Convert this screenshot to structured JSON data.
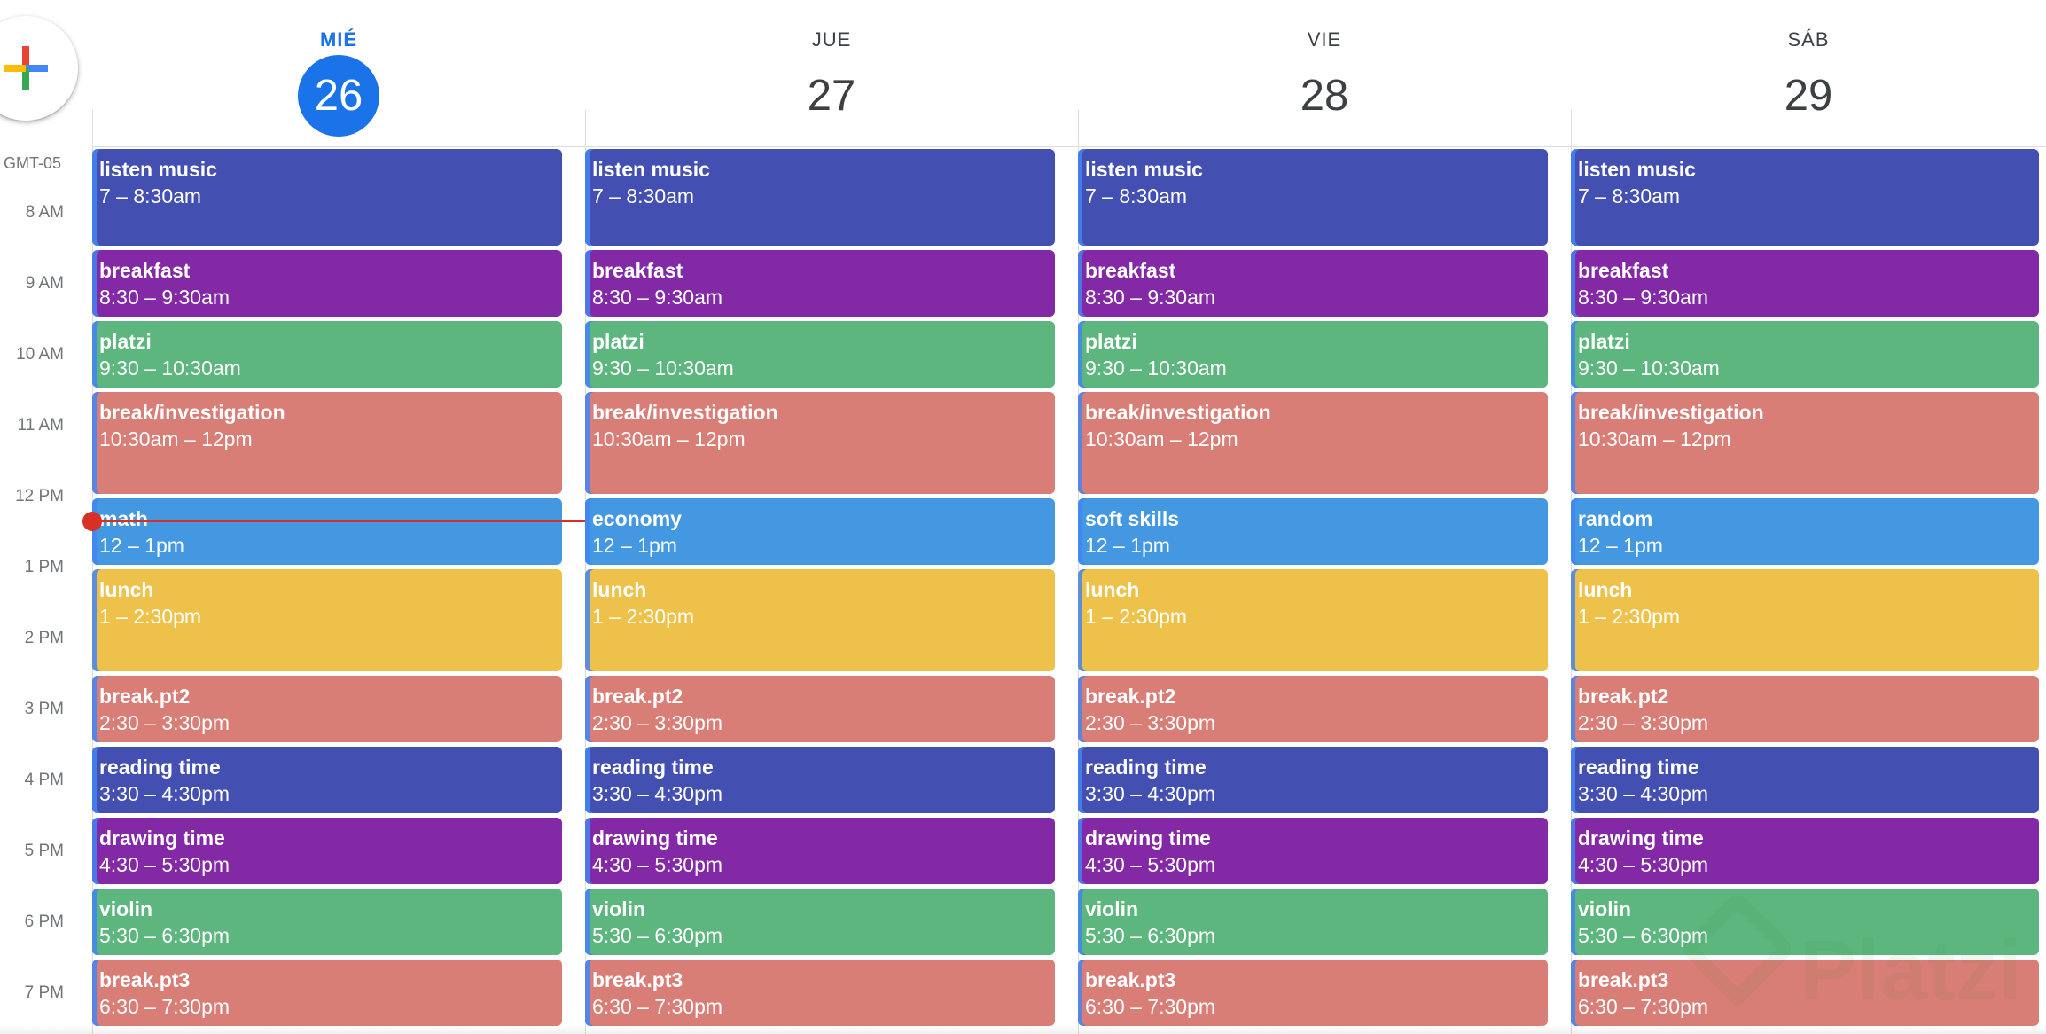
{
  "create_button": {
    "icon": "plus-multicolor-icon",
    "colors": [
      "#ea4335",
      "#4285f4",
      "#34a853",
      "#fbbc04"
    ]
  },
  "timezone_label": "GMT-05",
  "time_labels": [
    "8 AM",
    "9 AM",
    "10 AM",
    "11 AM",
    "12 PM",
    "1 PM",
    "2 PM",
    "3 PM",
    "4 PM",
    "5 PM",
    "6 PM",
    "7 PM"
  ],
  "colors": {
    "indigo": "#4350b2",
    "purple": "#8329a5",
    "green": "#5cb67e",
    "salmon": "#d97e76",
    "blue": "#4498e2",
    "yellow": "#eec24a",
    "today": "#1a73e8",
    "now_indicator": "#d93025"
  },
  "days": [
    {
      "dow": "MIÉ",
      "date": "26",
      "today": true,
      "events": [
        {
          "title": "listen music",
          "time": "7 – 8:30am",
          "color": "#4350b2"
        },
        {
          "title": "breakfast",
          "time": "8:30 – 9:30am",
          "color": "#8329a5"
        },
        {
          "title": "platzi",
          "time": "9:30 – 10:30am",
          "color": "#5cb67e"
        },
        {
          "title": "break/investigation",
          "time": "10:30am – 12pm",
          "color": "#d97e76"
        },
        {
          "title": "math",
          "time": "12 – 1pm",
          "color": "#4498e2"
        },
        {
          "title": "lunch",
          "time": "1 – 2:30pm",
          "color": "#eec24a"
        },
        {
          "title": "break.pt2",
          "time": "2:30 – 3:30pm",
          "color": "#d97e76"
        },
        {
          "title": "reading time",
          "time": "3:30 – 4:30pm",
          "color": "#4350b2"
        },
        {
          "title": "drawing time",
          "time": "4:30 – 5:30pm",
          "color": "#8329a5"
        },
        {
          "title": "violin",
          "time": "5:30 – 6:30pm",
          "color": "#5cb67e"
        },
        {
          "title": "break.pt3",
          "time": "6:30 – 7:30pm",
          "color": "#d97e76"
        }
      ]
    },
    {
      "dow": "JUE",
      "date": "27",
      "today": false,
      "events": [
        {
          "title": "listen music",
          "time": "7 – 8:30am",
          "color": "#4350b2"
        },
        {
          "title": "breakfast",
          "time": "8:30 – 9:30am",
          "color": "#8329a5"
        },
        {
          "title": "platzi",
          "time": "9:30 – 10:30am",
          "color": "#5cb67e"
        },
        {
          "title": "break/investigation",
          "time": "10:30am – 12pm",
          "color": "#d97e76"
        },
        {
          "title": "economy",
          "time": "12 – 1pm",
          "color": "#4498e2"
        },
        {
          "title": "lunch",
          "time": "1 – 2:30pm",
          "color": "#eec24a"
        },
        {
          "title": "break.pt2",
          "time": "2:30 – 3:30pm",
          "color": "#d97e76"
        },
        {
          "title": "reading time",
          "time": "3:30 – 4:30pm",
          "color": "#4350b2"
        },
        {
          "title": "drawing time",
          "time": "4:30 – 5:30pm",
          "color": "#8329a5"
        },
        {
          "title": "violin",
          "time": "5:30 – 6:30pm",
          "color": "#5cb67e"
        },
        {
          "title": "break.pt3",
          "time": "6:30 – 7:30pm",
          "color": "#d97e76"
        }
      ]
    },
    {
      "dow": "VIE",
      "date": "28",
      "today": false,
      "events": [
        {
          "title": "listen music",
          "time": "7 – 8:30am",
          "color": "#4350b2"
        },
        {
          "title": "breakfast",
          "time": "8:30 – 9:30am",
          "color": "#8329a5"
        },
        {
          "title": "platzi",
          "time": "9:30 – 10:30am",
          "color": "#5cb67e"
        },
        {
          "title": "break/investigation",
          "time": "10:30am – 12pm",
          "color": "#d97e76"
        },
        {
          "title": "soft skills",
          "time": "12 – 1pm",
          "color": "#4498e2"
        },
        {
          "title": "lunch",
          "time": "1 – 2:30pm",
          "color": "#eec24a"
        },
        {
          "title": "break.pt2",
          "time": "2:30 – 3:30pm",
          "color": "#d97e76"
        },
        {
          "title": "reading time",
          "time": "3:30 – 4:30pm",
          "color": "#4350b2"
        },
        {
          "title": "drawing time",
          "time": "4:30 – 5:30pm",
          "color": "#8329a5"
        },
        {
          "title": "violin",
          "time": "5:30 – 6:30pm",
          "color": "#5cb67e"
        },
        {
          "title": "break.pt3",
          "time": "6:30 – 7:30pm",
          "color": "#d97e76"
        }
      ]
    },
    {
      "dow": "SÁB",
      "date": "29",
      "today": false,
      "events": [
        {
          "title": "listen music",
          "time": "7 – 8:30am",
          "color": "#4350b2"
        },
        {
          "title": "breakfast",
          "time": "8:30 – 9:30am",
          "color": "#8329a5"
        },
        {
          "title": "platzi",
          "time": "9:30 – 10:30am",
          "color": "#5cb67e"
        },
        {
          "title": "break/investigation",
          "time": "10:30am – 12pm",
          "color": "#d97e76"
        },
        {
          "title": "random",
          "time": "12 – 1pm",
          "color": "#4498e2"
        },
        {
          "title": "lunch",
          "time": "1 – 2:30pm",
          "color": "#eec24a"
        },
        {
          "title": "break.pt2",
          "time": "2:30 – 3:30pm",
          "color": "#d97e76"
        },
        {
          "title": "reading time",
          "time": "3:30 – 4:30pm",
          "color": "#4350b2"
        },
        {
          "title": "drawing time",
          "time": "4:30 – 5:30pm",
          "color": "#8329a5"
        },
        {
          "title": "violin",
          "time": "5:30 – 6:30pm",
          "color": "#5cb67e"
        },
        {
          "title": "break.pt3",
          "time": "6:30 – 7:30pm",
          "color": "#d97e76"
        }
      ]
    }
  ],
  "watermark": {
    "text": "Platzi"
  }
}
